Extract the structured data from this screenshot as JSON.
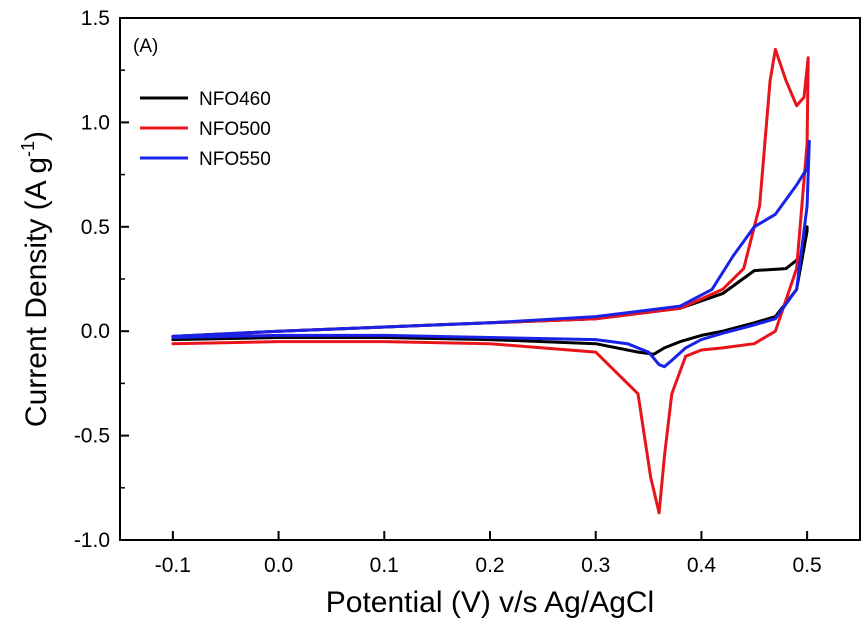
{
  "chart_data": {
    "type": "line",
    "panel_label": "(A)",
    "xlabel": "Potential (V) v/s Ag/AgCl",
    "ylabel_main": "Current Density (A g",
    "ylabel_sup": "-1",
    "ylabel_end": ")",
    "xlim": [
      -0.15,
      0.55
    ],
    "ylim": [
      -1.0,
      1.5
    ],
    "xticks": [
      "-0.1",
      "0.0",
      "0.1",
      "0.2",
      "0.3",
      "0.4",
      "0.5"
    ],
    "xtick_values": [
      -0.1,
      0.0,
      0.1,
      0.2,
      0.3,
      0.4,
      0.5
    ],
    "yticks": [
      "-1.0",
      "-0.5",
      "0.0",
      "0.5",
      "1.0",
      "1.5"
    ],
    "ytick_values": [
      -1.0,
      -0.5,
      0.0,
      0.5,
      1.0,
      1.5
    ],
    "legend_position": "upper-left",
    "series": [
      {
        "name": "NFO460",
        "color": "#000000",
        "x": [
          -0.1,
          0.0,
          0.1,
          0.2,
          0.3,
          0.38,
          0.42,
          0.45,
          0.48,
          0.495,
          0.5,
          0.5,
          0.49,
          0.47,
          0.45,
          0.42,
          0.4,
          0.38,
          0.365,
          0.355,
          0.34,
          0.3,
          0.2,
          0.1,
          0.0,
          -0.1
        ],
        "y": [
          -0.025,
          0.0,
          0.02,
          0.04,
          0.06,
          0.11,
          0.18,
          0.29,
          0.3,
          0.36,
          0.5,
          0.48,
          0.2,
          0.07,
          0.04,
          0.0,
          -0.02,
          -0.05,
          -0.08,
          -0.11,
          -0.1,
          -0.06,
          -0.04,
          -0.03,
          -0.03,
          -0.04
        ]
      },
      {
        "name": "NFO500",
        "color": "#e8141c",
        "x": [
          -0.1,
          0.0,
          0.1,
          0.2,
          0.3,
          0.38,
          0.42,
          0.44,
          0.455,
          0.465,
          0.47,
          0.48,
          0.49,
          0.497,
          0.501,
          0.5,
          0.49,
          0.47,
          0.45,
          0.42,
          0.4,
          0.385,
          0.372,
          0.365,
          0.36,
          0.352,
          0.34,
          0.3,
          0.2,
          0.1,
          0.0,
          -0.1
        ],
        "y": [
          -0.03,
          0.0,
          0.02,
          0.04,
          0.06,
          0.11,
          0.2,
          0.3,
          0.6,
          1.2,
          1.35,
          1.2,
          1.08,
          1.12,
          1.31,
          0.9,
          0.3,
          0.0,
          -0.06,
          -0.08,
          -0.09,
          -0.12,
          -0.3,
          -0.6,
          -0.87,
          -0.7,
          -0.3,
          -0.1,
          -0.06,
          -0.05,
          -0.05,
          -0.06
        ]
      },
      {
        "name": "NFO550",
        "color": "#1a22e8",
        "x": [
          -0.1,
          0.0,
          0.1,
          0.2,
          0.3,
          0.38,
          0.41,
          0.43,
          0.45,
          0.47,
          0.49,
          0.5,
          0.502,
          0.5,
          0.49,
          0.47,
          0.45,
          0.42,
          0.4,
          0.385,
          0.372,
          0.365,
          0.36,
          0.35,
          0.33,
          0.3,
          0.2,
          0.1,
          0.0,
          -0.1
        ],
        "y": [
          -0.025,
          0.0,
          0.02,
          0.04,
          0.07,
          0.12,
          0.2,
          0.36,
          0.5,
          0.56,
          0.7,
          0.78,
          0.91,
          0.6,
          0.2,
          0.06,
          0.03,
          -0.01,
          -0.04,
          -0.08,
          -0.14,
          -0.17,
          -0.16,
          -0.1,
          -0.06,
          -0.04,
          -0.03,
          -0.02,
          -0.02,
          -0.03
        ]
      }
    ]
  }
}
